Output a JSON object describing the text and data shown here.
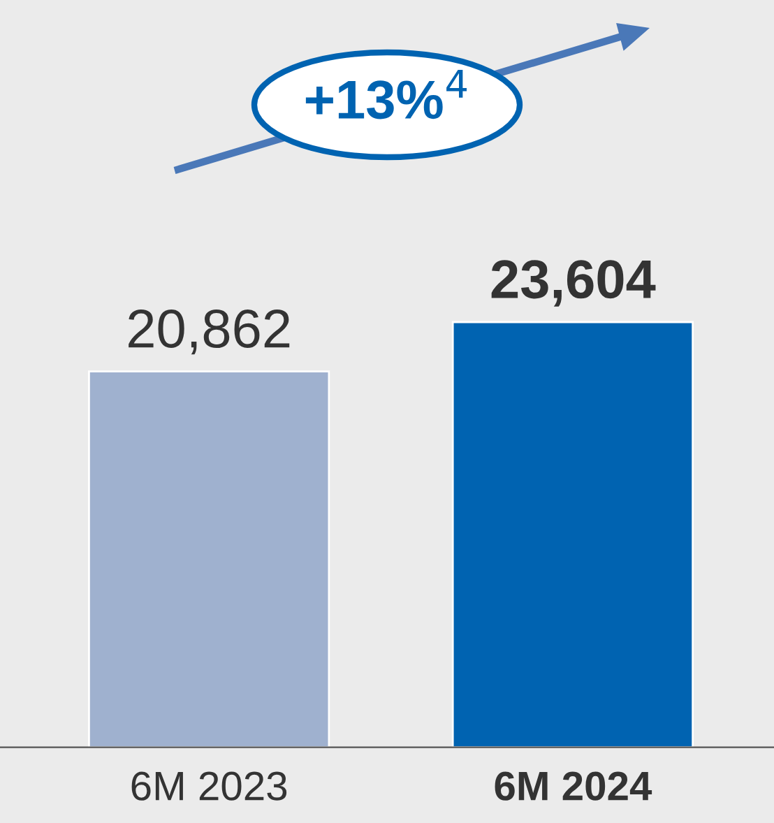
{
  "chart_data": {
    "type": "bar",
    "categories": [
      "6M 2023",
      "6M 2024"
    ],
    "values": [
      20862,
      23604
    ],
    "colors": [
      "#9fb1cf",
      "#0063b1"
    ],
    "value_labels": [
      "20,862",
      "23,604"
    ],
    "annotations": [
      "+13%$^{4}$"
    ],
    "grid": false,
    "legend": false
  }
}
